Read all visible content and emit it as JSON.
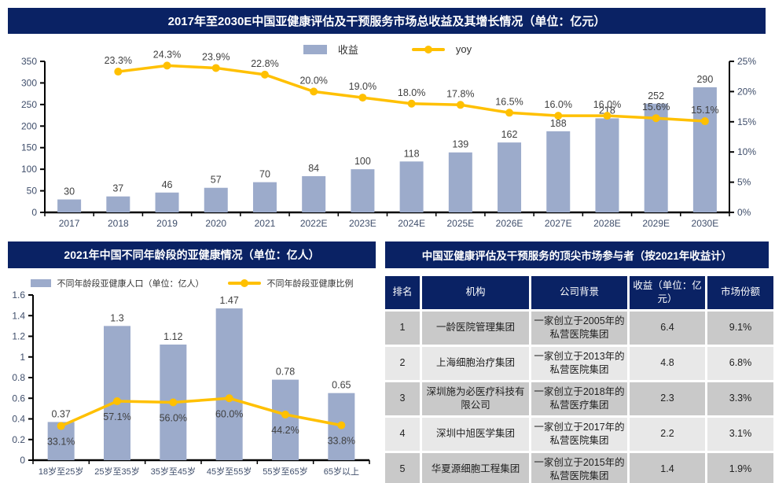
{
  "colors": {
    "navy": "#0A2264",
    "bar_fill": "#9CABCB",
    "line_gold": "#FFC000",
    "row_dark": "#C9C9C9",
    "row_light": "#E8E8E8",
    "axis_black": "#000000",
    "tick_text": "#3F4E6B",
    "label_text": "#404040"
  },
  "chart_data": [
    {
      "type": "bar",
      "subtype": "bar+line-combo",
      "title": "2017年至2030E中国亚健康评估及干预服务市场总收益及其增长情况（单位：亿元）",
      "legend_position": "top-center",
      "grid": false,
      "categories": [
        "2017",
        "2018",
        "2019",
        "2020",
        "2021",
        "2022E",
        "2023E",
        "2024E",
        "2025E",
        "2026E",
        "2027E",
        "2028E",
        "2029E",
        "2030E"
      ],
      "series": [
        {
          "name": "收益",
          "type": "bar",
          "axis": "left",
          "color": "#9CABCB",
          "values": [
            30,
            37,
            46,
            57,
            70,
            84,
            100,
            118,
            139,
            162,
            188,
            218,
            252,
            290
          ],
          "labels": [
            "30",
            "37",
            "46",
            "57",
            "70",
            "84",
            "100",
            "118",
            "139",
            "162",
            "188",
            "218",
            "252",
            "290"
          ]
        },
        {
          "name": "yoy",
          "type": "line",
          "axis": "right",
          "color": "#FFC000",
          "values": [
            null,
            23.3,
            24.3,
            23.9,
            22.8,
            20.0,
            19.0,
            18.0,
            17.8,
            16.5,
            16.0,
            16.0,
            15.6,
            15.1
          ],
          "labels": [
            "",
            "23.3%",
            "24.3%",
            "23.9%",
            "22.8%",
            "20.0%",
            "19.0%",
            "18.0%",
            "17.8%",
            "16.5%",
            "16.0%",
            "16.0%",
            "15.6%",
            "15.1%"
          ]
        }
      ],
      "left_axis": {
        "min": 0,
        "max": 350,
        "ticks": [
          "0",
          "50",
          "100",
          "150",
          "200",
          "250",
          "300",
          "350"
        ]
      },
      "right_axis": {
        "min": 0,
        "max": 25,
        "ticks": [
          "0%",
          "5%",
          "10%",
          "15%",
          "20%",
          "25%"
        ]
      }
    },
    {
      "type": "bar",
      "subtype": "bar+line-combo",
      "title": "2021年中国不同年龄段的亚健康情况（单位：亿人）",
      "legend_position": "top-center",
      "grid": false,
      "categories": [
        "18岁至25岁",
        "25岁至35岁",
        "35岁至45岁",
        "45岁至55岁",
        "55岁至65岁",
        "65岁以上"
      ],
      "series": [
        {
          "name": "不同年龄段亚健康人口（单位：亿人）",
          "type": "bar",
          "axis": "left",
          "color": "#9CABCB",
          "values": [
            0.37,
            1.3,
            1.12,
            1.47,
            0.78,
            0.65
          ],
          "labels": [
            "0.37",
            "1.3",
            "1.12",
            "1.47",
            "0.78",
            "0.65"
          ]
        },
        {
          "name": "不同年龄段亚健康比例",
          "type": "line",
          "axis": "left",
          "color": "#FFC000",
          "values": [
            0.331,
            0.571,
            0.56,
            0.6,
            0.442,
            0.338
          ],
          "labels": [
            "33.1%",
            "57.1%",
            "56.0%",
            "60.0%",
            "44.2%",
            "33.8%"
          ]
        }
      ],
      "left_axis": {
        "min": 0,
        "max": 1.6,
        "ticks": [
          "0",
          "0.2",
          "0.4",
          "0.6",
          "0.8",
          "1",
          "1.2",
          "1.4",
          "1.6"
        ]
      }
    },
    {
      "type": "table",
      "title": "中国亚健康评估及干预服务的顶尖市场参与者（按2021年收益计）",
      "columns": [
        "排名",
        "机构",
        "公司背景",
        "收益（单位：亿元）",
        "市场份额"
      ],
      "rows": [
        [
          "1",
          "一龄医院管理集团",
          "一家创立于2005年的私营医院集团",
          "6.4",
          "9.1%"
        ],
        [
          "2",
          "上海细胞治疗集团",
          "一家创立于2013年的私营医院集团",
          "4.8",
          "6.8%"
        ],
        [
          "3",
          "深圳施为必医疗科技有限公司",
          "一家创立于2018年的私营医疗集团",
          "2.3",
          "3.3%"
        ],
        [
          "4",
          "深圳中旭医学集团",
          "一家创立于2017年的私营医院集团",
          "2.2",
          "3.1%"
        ],
        [
          "5",
          "华夏源细胞工程集团",
          "一家创立于2015年的私营医院集团",
          "1.4",
          "1.9%"
        ]
      ]
    }
  ]
}
